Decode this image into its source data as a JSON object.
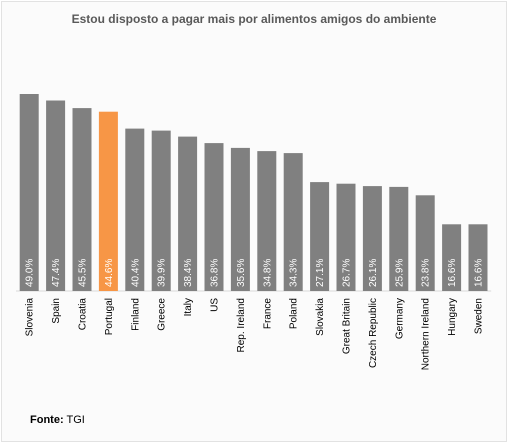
{
  "chart_data": {
    "type": "bar",
    "title": "Estou disposto a pagar mais por alimentos amigos do ambiente",
    "categories": [
      "Slovenia",
      "Spain",
      "Croatia",
      "Portugal",
      "Finland",
      "Greece",
      "Italy",
      "US",
      "Rep. Ireland",
      "France",
      "Poland",
      "Slovakia",
      "Great Britain",
      "Czech Republic",
      "Germany",
      "Northern Ireland",
      "Hungary",
      "Sweden"
    ],
    "values": [
      49.0,
      47.4,
      45.5,
      44.6,
      40.4,
      39.9,
      38.4,
      36.8,
      35.6,
      34.8,
      34.3,
      27.1,
      26.7,
      26.1,
      25.9,
      23.8,
      16.6,
      16.6
    ],
    "value_labels": [
      "49.0%",
      "47.4%",
      "45.5%",
      "44.6%",
      "40.4%",
      "39.9%",
      "38.4%",
      "36.8%",
      "35.6%",
      "34.8%",
      "34.3%",
      "27.1%",
      "26.7%",
      "26.1%",
      "25.9%",
      "23.8%",
      "16.6%",
      "16.6%"
    ],
    "highlight_category": "Portugal",
    "ylim": [
      0,
      50
    ],
    "grid": false,
    "legend": "none",
    "colors": {
      "bar": "#808080",
      "highlight": "#f79646",
      "label": "#ffffff",
      "axis": "#d9d9d9",
      "tick": "#000000"
    }
  },
  "source": {
    "label": "Fonte:",
    "text": "TGI"
  }
}
